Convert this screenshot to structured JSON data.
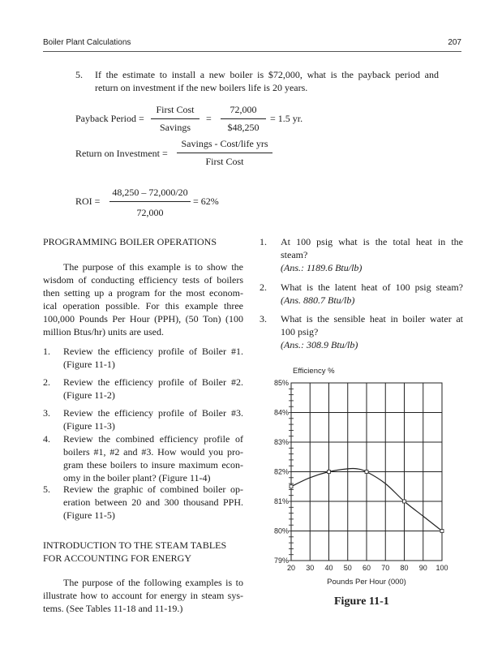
{
  "header": {
    "running_title": "Boiler Plant Calculations",
    "page_number": "207"
  },
  "question5": {
    "number": "5.",
    "lines": [
      "If the estimate to install a new boiler is $72,000, what is the payback period and",
      "return on investment if the new boilers life is 20 years."
    ]
  },
  "payback": {
    "label": "Payback Period =",
    "num1": "First Cost",
    "den1": "Savings",
    "eq": "=",
    "num2": "72,000",
    "den2": "$48,250",
    "result": "= 1.5 yr."
  },
  "roi_formula": {
    "label": "Return on Investment =",
    "num": "Savings - Cost/life yrs",
    "den": "First Cost"
  },
  "roi_calc": {
    "label": "ROI =",
    "num": "48,250 – 72,000/20",
    "den": "72,000",
    "result": "= 62%"
  },
  "left": {
    "heading1": "PROGRAMMING BOILER OPERATIONS",
    "para1": [
      "The purpose of this example is to show the",
      "wisdom of conducting efficiency tests of boilers",
      "then setting up a program for the most econom-",
      "ical operation possible. For this example three",
      "100,000 Pounds Per Hour (PPH), (50 Ton) (100",
      "million Btus/hr) units are used."
    ],
    "list": [
      {
        "n": "1.",
        "lines": [
          "Review the efficiency profile of Boiler #1.",
          "(Figure 11-1)"
        ]
      },
      {
        "n": "2.",
        "lines": [
          "Review the efficiency profile of Boiler #2.",
          "(Figure 11-2)"
        ]
      },
      {
        "n": "3.",
        "lines": [
          "Review the efficiency profile of Boiler #3.",
          "(Figure 11-3)"
        ]
      },
      {
        "n": "4.",
        "lines": [
          "Review the combined efficiency profile of",
          "boilers #1, #2 and #3. How would you pro-",
          "gram these boilers to insure maximum econ-",
          "omy in the boiler plant? (Figure 11-4)"
        ]
      },
      {
        "n": "5.",
        "lines": [
          "Review the graphic of combined boiler op-",
          "eration between 20 and 300 thousand PPH.",
          "(Figure 11-5)"
        ]
      }
    ],
    "heading2": [
      "INTRODUCTION TO THE STEAM TABLES",
      "FOR ACCOUNTING FOR ENERGY"
    ],
    "para2": [
      "The purpose of the following examples is to",
      "illustrate how to account for energy in steam sys-",
      "tems. (See Tables 11-18 and 11-19.)"
    ]
  },
  "right": {
    "questions": [
      {
        "n": "1.",
        "lines": [
          "At 100 psig what is the total heat in the",
          "steam?"
        ],
        "answer": "(Ans.: 1189.6 Btu/lb)"
      },
      {
        "n": "2.",
        "lines": [
          "What is the latent heat of 100 psig steam?"
        ],
        "answer": "(Ans. 880.7 Btu/lb)"
      },
      {
        "n": "3.",
        "lines": [
          "What is the sensible heat in boiler water at",
          "100 psig?"
        ],
        "answer": "(Ans.: 308.9 Btu/lb)"
      }
    ]
  },
  "chart_data": {
    "type": "line",
    "title": "",
    "caption": "Figure 11-1",
    "ylabel": "Efficiency %",
    "xlabel": "Pounds Per Hour (000)",
    "xlim": [
      20,
      100
    ],
    "ylim": [
      79,
      85
    ],
    "xticks": [
      "20",
      "30",
      "40",
      "50",
      "60",
      "70",
      "80",
      "90",
      "100"
    ],
    "yticks": [
      "79%",
      "80%",
      "81%",
      "82%",
      "83%",
      "84%",
      "85%"
    ],
    "grid": true,
    "series": [
      {
        "x": [
          20,
          30,
          40,
          50,
          55,
          60,
          70,
          80,
          90,
          100
        ],
        "y": [
          81.5,
          81.8,
          82.0,
          82.1,
          82.1,
          82.0,
          81.6,
          81.0,
          80.5,
          80.0
        ]
      }
    ],
    "markers": {
      "x": [
        20,
        40,
        60,
        80,
        100
      ],
      "y": [
        81.5,
        82.0,
        82.0,
        81.0,
        80.0
      ]
    },
    "line_color": "#222222"
  }
}
